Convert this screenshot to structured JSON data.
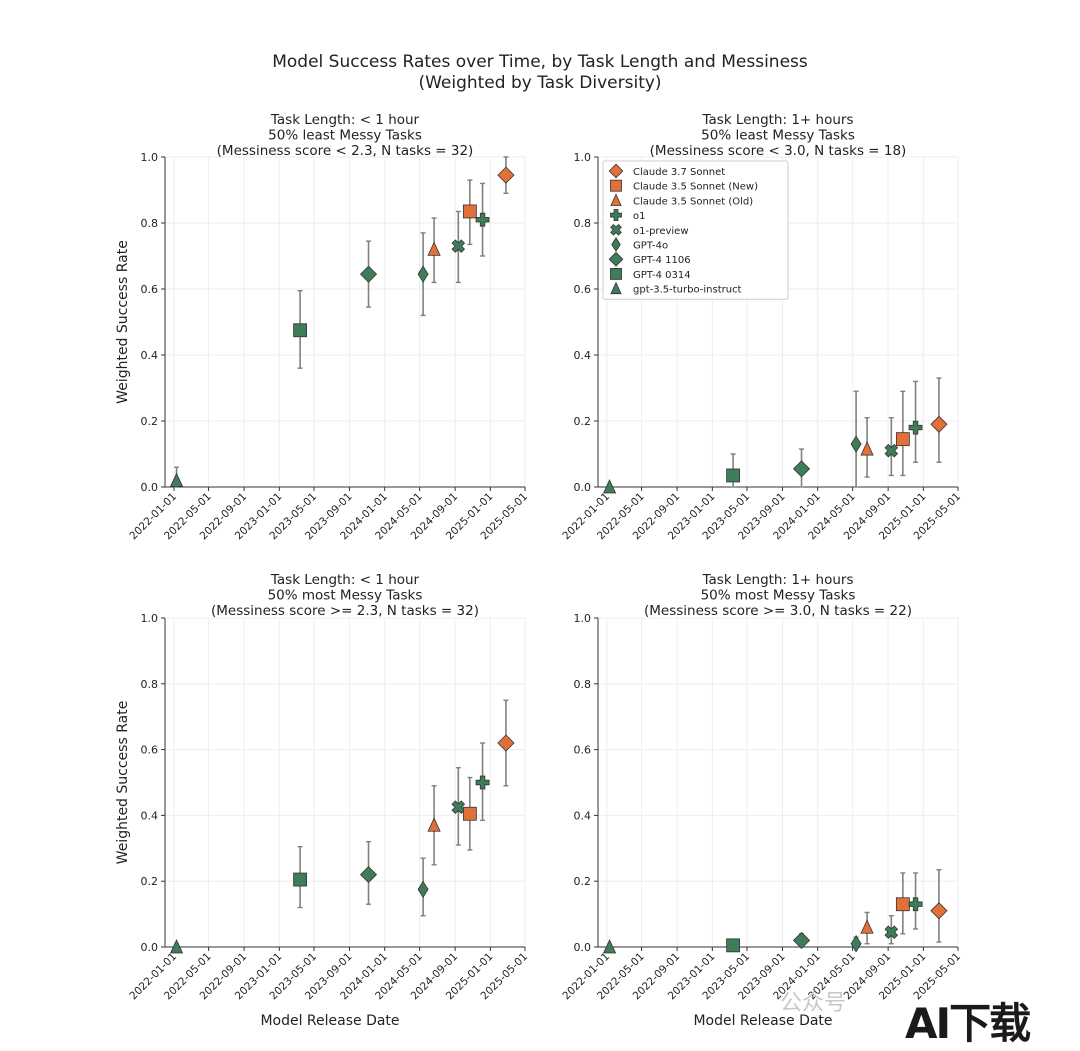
{
  "figure": {
    "title_line1": "Model Success Rates over Time, by Task Length and Messiness",
    "title_line2": "(Weighted by Task Diversity)",
    "xlabel": "Model Release Date",
    "ylabel": "Weighted Success Rate",
    "watermark_text": "AI下载",
    "watermark_small": "公众号"
  },
  "colors": {
    "orange": "#e2703b",
    "green": "#3e7c5a",
    "grid": "#eeeeee",
    "errorbar": "#808080"
  },
  "legend": [
    {
      "label": "Claude 3.7 Sonnet",
      "marker": "diamond",
      "color": "orange"
    },
    {
      "label": "Claude 3.5 Sonnet (New)",
      "marker": "square",
      "color": "orange"
    },
    {
      "label": "Claude 3.5 Sonnet (Old)",
      "marker": "triangle",
      "color": "orange"
    },
    {
      "label": "o1",
      "marker": "plus",
      "color": "green"
    },
    {
      "label": "o1-preview",
      "marker": "x",
      "color": "green"
    },
    {
      "label": "GPT-4o",
      "marker": "thin-diamond",
      "color": "green"
    },
    {
      "label": "GPT-4 1106",
      "marker": "diamond",
      "color": "green"
    },
    {
      "label": "GPT-4 0314",
      "marker": "square",
      "color": "green"
    },
    {
      "label": "gpt-3.5-turbo-instruct",
      "marker": "triangle",
      "color": "green"
    }
  ],
  "chart_data": [
    {
      "type": "scatter",
      "title": [
        "Task Length: < 1 hour",
        "50% least Messy Tasks",
        "(Messiness score < 2.3, N tasks = 32)"
      ],
      "xlabel": "",
      "ylabel": "Weighted Success Rate",
      "ylim": [
        0,
        1.0
      ],
      "grid": true,
      "xticks": [
        "2022-01-01",
        "2022-05-01",
        "2022-09-01",
        "2023-01-01",
        "2023-05-01",
        "2023-09-01",
        "2024-01-01",
        "2024-05-01",
        "2024-09-01",
        "2025-01-01",
        "2025-05-01"
      ],
      "yticks": [
        "0.0",
        "0.2",
        "0.4",
        "0.6",
        "0.8",
        "1.0"
      ],
      "points": [
        {
          "model": "gpt-3.5-turbo-instruct",
          "date": "2022-01-10",
          "y": 0.02,
          "lo": 0.0,
          "hi": 0.06
        },
        {
          "model": "GPT-4 0314",
          "date": "2023-03-14",
          "y": 0.475,
          "lo": 0.36,
          "hi": 0.595
        },
        {
          "model": "GPT-4 1106",
          "date": "2023-11-06",
          "y": 0.645,
          "lo": 0.545,
          "hi": 0.745
        },
        {
          "model": "GPT-4o",
          "date": "2024-05-13",
          "y": 0.645,
          "lo": 0.52,
          "hi": 0.77
        },
        {
          "model": "Claude 3.5 Sonnet (Old)",
          "date": "2024-06-20",
          "y": 0.72,
          "lo": 0.62,
          "hi": 0.815
        },
        {
          "model": "o1-preview",
          "date": "2024-09-12",
          "y": 0.73,
          "lo": 0.62,
          "hi": 0.835
        },
        {
          "model": "Claude 3.5 Sonnet (New)",
          "date": "2024-10-22",
          "y": 0.835,
          "lo": 0.735,
          "hi": 0.93
        },
        {
          "model": "o1",
          "date": "2024-12-05",
          "y": 0.81,
          "lo": 0.7,
          "hi": 0.92
        },
        {
          "model": "Claude 3.7 Sonnet",
          "date": "2025-02-24",
          "y": 0.945,
          "lo": 0.89,
          "hi": 1.0
        }
      ]
    },
    {
      "type": "scatter",
      "title": [
        "Task Length: 1+ hours",
        "50% least Messy Tasks",
        "(Messiness score < 3.0, N tasks = 18)"
      ],
      "xlabel": "",
      "ylabel": "",
      "ylim": [
        0,
        1.0
      ],
      "grid": true,
      "legend": "top-left",
      "xticks": [
        "2022-01-01",
        "2022-05-01",
        "2022-09-01",
        "2023-01-01",
        "2023-05-01",
        "2023-09-01",
        "2024-01-01",
        "2024-05-01",
        "2024-09-01",
        "2025-01-01",
        "2025-05-01"
      ],
      "yticks": [
        "0.0",
        "0.2",
        "0.4",
        "0.6",
        "0.8",
        "1.0"
      ],
      "points": [
        {
          "model": "gpt-3.5-turbo-instruct",
          "date": "2022-01-10",
          "y": 0.0,
          "lo": 0.0,
          "hi": 0.0
        },
        {
          "model": "GPT-4 0314",
          "date": "2023-03-14",
          "y": 0.035,
          "lo": 0.0,
          "hi": 0.1
        },
        {
          "model": "GPT-4 1106",
          "date": "2023-11-06",
          "y": 0.055,
          "lo": 0.0,
          "hi": 0.115
        },
        {
          "model": "GPT-4o",
          "date": "2024-05-13",
          "y": 0.13,
          "lo": 0.0,
          "hi": 0.29
        },
        {
          "model": "Claude 3.5 Sonnet (Old)",
          "date": "2024-06-20",
          "y": 0.115,
          "lo": 0.03,
          "hi": 0.21
        },
        {
          "model": "o1-preview",
          "date": "2024-09-12",
          "y": 0.11,
          "lo": 0.035,
          "hi": 0.21
        },
        {
          "model": "Claude 3.5 Sonnet (New)",
          "date": "2024-10-22",
          "y": 0.145,
          "lo": 0.035,
          "hi": 0.29
        },
        {
          "model": "o1",
          "date": "2024-12-05",
          "y": 0.18,
          "lo": 0.075,
          "hi": 0.32
        },
        {
          "model": "Claude 3.7 Sonnet",
          "date": "2025-02-24",
          "y": 0.19,
          "lo": 0.075,
          "hi": 0.33
        }
      ]
    },
    {
      "type": "scatter",
      "title": [
        "Task Length: < 1 hour",
        "50% most Messy Tasks",
        "(Messiness score >= 2.3, N tasks = 32)"
      ],
      "xlabel": "Model Release Date",
      "ylabel": "Weighted Success Rate",
      "ylim": [
        0,
        1.0
      ],
      "grid": true,
      "xticks": [
        "2022-01-01",
        "2022-05-01",
        "2022-09-01",
        "2023-01-01",
        "2023-05-01",
        "2023-09-01",
        "2024-01-01",
        "2024-05-01",
        "2024-09-01",
        "2025-01-01",
        "2025-05-01"
      ],
      "yticks": [
        "0.0",
        "0.2",
        "0.4",
        "0.6",
        "0.8",
        "1.0"
      ],
      "points": [
        {
          "model": "gpt-3.5-turbo-instruct",
          "date": "2022-01-10",
          "y": 0.0,
          "lo": 0.0,
          "hi": 0.0
        },
        {
          "model": "GPT-4 0314",
          "date": "2023-03-14",
          "y": 0.205,
          "lo": 0.12,
          "hi": 0.305
        },
        {
          "model": "GPT-4 1106",
          "date": "2023-11-06",
          "y": 0.22,
          "lo": 0.13,
          "hi": 0.32
        },
        {
          "model": "GPT-4o",
          "date": "2024-05-13",
          "y": 0.175,
          "lo": 0.095,
          "hi": 0.27
        },
        {
          "model": "Claude 3.5 Sonnet (Old)",
          "date": "2024-06-20",
          "y": 0.37,
          "lo": 0.25,
          "hi": 0.49
        },
        {
          "model": "o1-preview",
          "date": "2024-09-12",
          "y": 0.425,
          "lo": 0.31,
          "hi": 0.545
        },
        {
          "model": "Claude 3.5 Sonnet (New)",
          "date": "2024-10-22",
          "y": 0.405,
          "lo": 0.295,
          "hi": 0.515
        },
        {
          "model": "o1",
          "date": "2024-12-05",
          "y": 0.5,
          "lo": 0.385,
          "hi": 0.62
        },
        {
          "model": "Claude 3.7 Sonnet",
          "date": "2025-02-24",
          "y": 0.62,
          "lo": 0.49,
          "hi": 0.75
        }
      ]
    },
    {
      "type": "scatter",
      "title": [
        "Task Length: 1+ hours",
        "50% most Messy Tasks",
        "(Messiness score >= 3.0, N tasks = 22)"
      ],
      "xlabel": "Model Release Date",
      "ylabel": "",
      "ylim": [
        0,
        1.0
      ],
      "grid": true,
      "xticks": [
        "2022-01-01",
        "2022-05-01",
        "2022-09-01",
        "2023-01-01",
        "2023-05-01",
        "2023-09-01",
        "2024-01-01",
        "2024-05-01",
        "2024-09-01",
        "2025-01-01",
        "2025-05-01"
      ],
      "yticks": [
        "0.0",
        "0.2",
        "0.4",
        "0.6",
        "0.8",
        "1.0"
      ],
      "points": [
        {
          "model": "gpt-3.5-turbo-instruct",
          "date": "2022-01-10",
          "y": 0.0,
          "lo": 0.0,
          "hi": 0.0
        },
        {
          "model": "GPT-4 0314",
          "date": "2023-03-14",
          "y": 0.005,
          "lo": 0.0,
          "hi": 0.01
        },
        {
          "model": "GPT-4 1106",
          "date": "2023-11-06",
          "y": 0.02,
          "lo": 0.0,
          "hi": 0.04
        },
        {
          "model": "GPT-4o",
          "date": "2024-05-13",
          "y": 0.01,
          "lo": 0.0,
          "hi": 0.03
        },
        {
          "model": "Claude 3.5 Sonnet (Old)",
          "date": "2024-06-20",
          "y": 0.06,
          "lo": 0.01,
          "hi": 0.105
        },
        {
          "model": "o1-preview",
          "date": "2024-09-12",
          "y": 0.045,
          "lo": 0.01,
          "hi": 0.095
        },
        {
          "model": "Claude 3.5 Sonnet (New)",
          "date": "2024-10-22",
          "y": 0.13,
          "lo": 0.04,
          "hi": 0.225
        },
        {
          "model": "o1",
          "date": "2024-12-05",
          "y": 0.13,
          "lo": 0.055,
          "hi": 0.225
        },
        {
          "model": "Claude 3.7 Sonnet",
          "date": "2025-02-24",
          "y": 0.11,
          "lo": 0.015,
          "hi": 0.235
        }
      ]
    }
  ]
}
